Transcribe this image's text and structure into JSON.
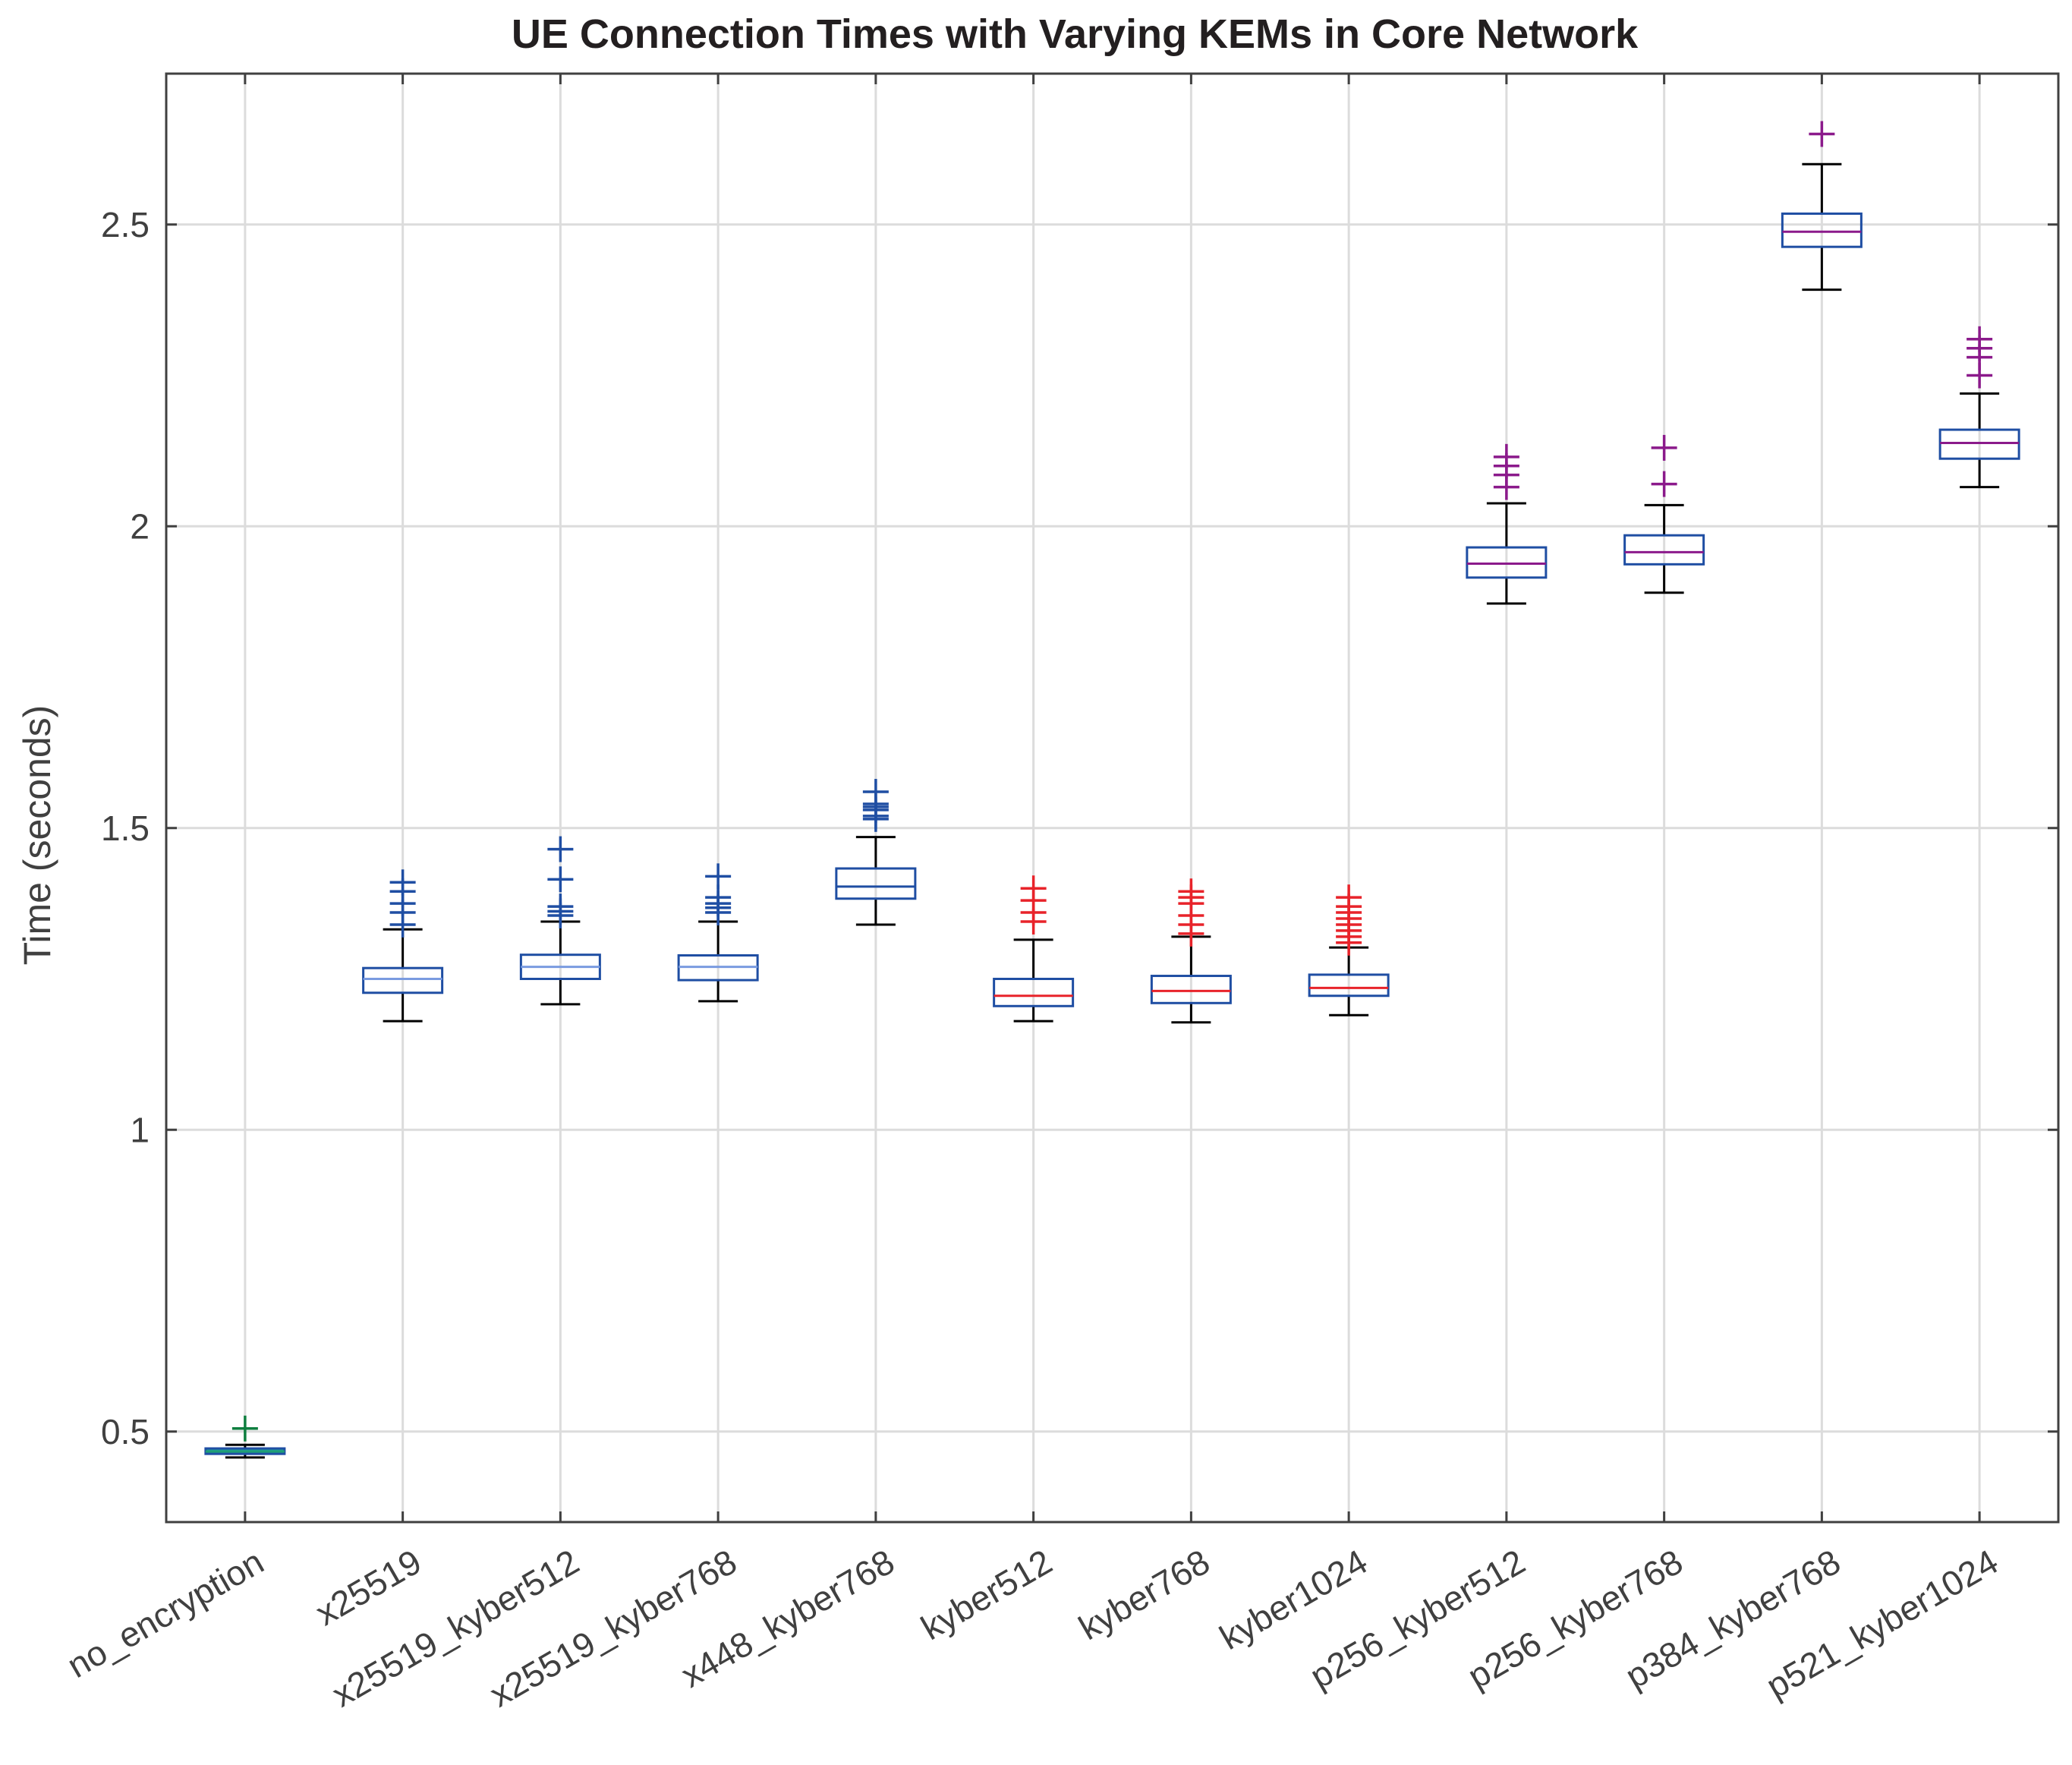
{
  "chart_data": {
    "type": "box",
    "title": "UE Connection Times with Varying KEMs in Core Network",
    "xlabel": "",
    "ylabel": "Time (seconds)",
    "ylim": [
      0.35,
      2.75
    ],
    "yticks": [
      0.5,
      1,
      1.5,
      2,
      2.5
    ],
    "ytick_labels": [
      "0.5",
      "1",
      "1.5",
      "2",
      "2.5"
    ],
    "grid": true,
    "box_color": "#1f4ea3",
    "whisker_color": "#000000",
    "categories": [
      "no_encryption",
      "x25519",
      "x25519_kyber512",
      "x25519_kyber768",
      "x448_kyber768",
      "kyber512",
      "kyber768",
      "kyber1024",
      "p256_kyber512",
      "p256_kyber768",
      "p384_kyber768",
      "p521_kyber1024"
    ],
    "boxes": [
      {
        "category": "no_encryption",
        "whisker_low": 0.457,
        "q1": 0.463,
        "median": 0.467,
        "q3": 0.472,
        "whisker_high": 0.478,
        "outliers": [
          0.505
        ],
        "median_color": "#1f9e75",
        "outlier_color": "#0f7f3f",
        "box_fill": "#1f9e9e"
      },
      {
        "category": "x25519",
        "whisker_low": 1.18,
        "q1": 1.227,
        "median": 1.25,
        "q3": 1.268,
        "whisker_high": 1.332,
        "outliers": [
          1.34,
          1.36,
          1.375,
          1.395,
          1.41
        ],
        "median_color": "#7a9be0",
        "outlier_color": "#1f4ea3"
      },
      {
        "category": "x25519_kyber512",
        "whisker_low": 1.208,
        "q1": 1.25,
        "median": 1.27,
        "q3": 1.29,
        "whisker_high": 1.345,
        "outliers": [
          1.355,
          1.362,
          1.37,
          1.415,
          1.465
        ],
        "median_color": "#7a9be0",
        "outlier_color": "#1f4ea3"
      },
      {
        "category": "x25519_kyber768",
        "whisker_low": 1.213,
        "q1": 1.248,
        "median": 1.27,
        "q3": 1.289,
        "whisker_high": 1.345,
        "outliers": [
          1.36,
          1.368,
          1.375,
          1.385,
          1.42
        ],
        "median_color": "#7a9be0",
        "outlier_color": "#1f4ea3"
      },
      {
        "category": "x448_kyber768",
        "whisker_low": 1.34,
        "q1": 1.383,
        "median": 1.403,
        "q3": 1.433,
        "whisker_high": 1.485,
        "outliers": [
          1.515,
          1.52,
          1.53,
          1.535,
          1.54,
          1.56
        ],
        "median_color": "#1f4ea3",
        "outlier_color": "#1f4ea3"
      },
      {
        "category": "kyber512",
        "whisker_low": 1.18,
        "q1": 1.205,
        "median": 1.222,
        "q3": 1.25,
        "whisker_high": 1.315,
        "outliers": [
          1.345,
          1.36,
          1.38,
          1.4
        ],
        "median_color": "#e8232a",
        "outlier_color": "#e8232a"
      },
      {
        "category": "kyber768",
        "whisker_low": 1.178,
        "q1": 1.21,
        "median": 1.23,
        "q3": 1.255,
        "whisker_high": 1.32,
        "outliers": [
          1.325,
          1.34,
          1.355,
          1.375,
          1.385,
          1.395
        ],
        "median_color": "#e8232a",
        "outlier_color": "#e8232a"
      },
      {
        "category": "kyber1024",
        "whisker_low": 1.19,
        "q1": 1.222,
        "median": 1.235,
        "q3": 1.257,
        "whisker_high": 1.302,
        "outliers": [
          1.31,
          1.32,
          1.33,
          1.34,
          1.35,
          1.36,
          1.37,
          1.385
        ],
        "median_color": "#e8232a",
        "outlier_color": "#e8232a"
      },
      {
        "category": "p256_kyber512",
        "whisker_low": 1.872,
        "q1": 1.915,
        "median": 1.938,
        "q3": 1.965,
        "whisker_high": 2.038,
        "outliers": [
          2.065,
          2.085,
          2.1,
          2.115
        ],
        "median_color": "#8b1a8b",
        "outlier_color": "#8b1a8b"
      },
      {
        "category": "p256_kyber768",
        "whisker_low": 1.89,
        "q1": 1.937,
        "median": 1.957,
        "q3": 1.985,
        "whisker_high": 2.035,
        "outliers": [
          2.07,
          2.13
        ],
        "median_color": "#8b1a8b",
        "outlier_color": "#8b1a8b"
      },
      {
        "category": "p384_kyber768",
        "whisker_low": 2.392,
        "q1": 2.463,
        "median": 2.488,
        "q3": 2.518,
        "whisker_high": 2.6,
        "outliers": [
          2.65
        ],
        "median_color": "#8b1a8b",
        "outlier_color": "#8b1a8b"
      },
      {
        "category": "p521_kyber1024",
        "whisker_low": 2.065,
        "q1": 2.112,
        "median": 2.138,
        "q3": 2.16,
        "whisker_high": 2.22,
        "outliers": [
          2.25,
          2.28,
          2.295,
          2.31
        ],
        "median_color": "#8b1a8b",
        "outlier_color": "#8b1a8b"
      }
    ]
  }
}
